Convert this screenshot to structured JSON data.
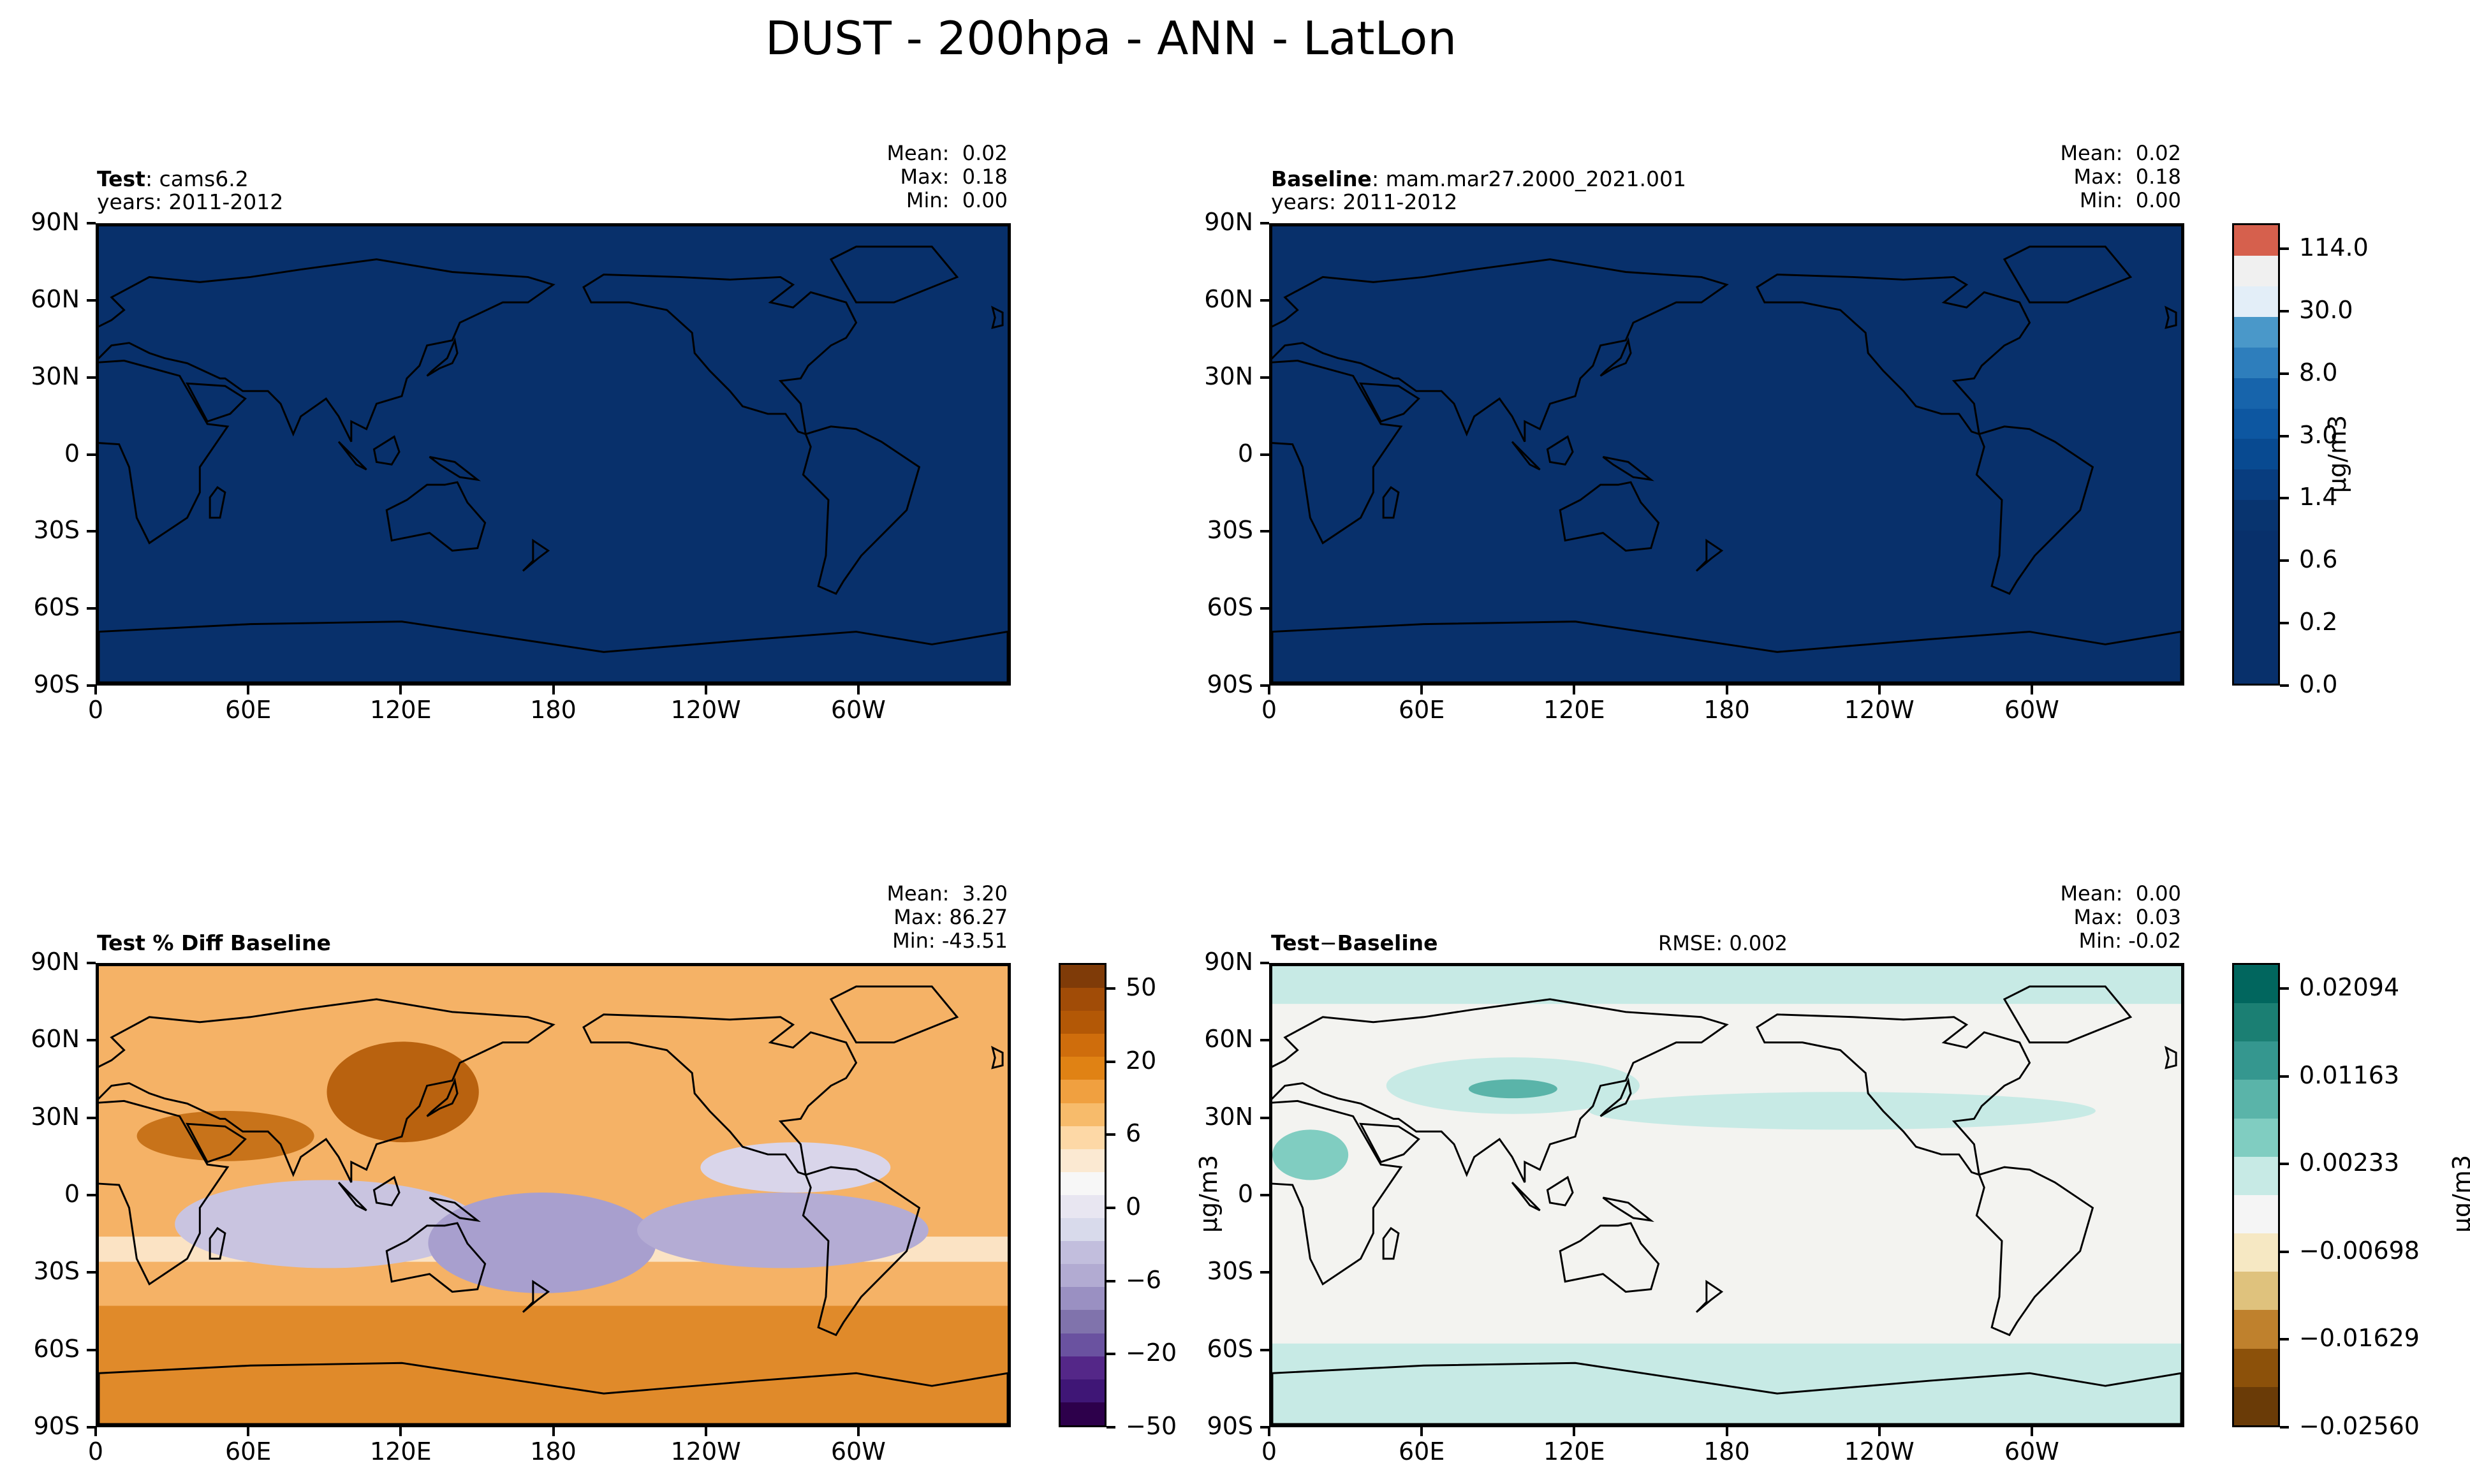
{
  "figure": {
    "title": "DUST - 200hpa - ANN - LatLon"
  },
  "axes": {
    "lat_ticks": [
      "90N",
      "60N",
      "30N",
      "0",
      "30S",
      "60S",
      "90S"
    ],
    "lon_ticks": [
      "0",
      "60E",
      "120E",
      "180",
      "120W",
      "60W"
    ]
  },
  "panels": {
    "test": {
      "label_bold": "Test",
      "label_sep": ":",
      "name": "cams6.2",
      "years": "years: 2011-2012",
      "mean": "Mean:  0.02",
      "max": "Max:  0.18",
      "min": "Min:  0.00",
      "fill": "#08306b"
    },
    "baseline": {
      "label_bold": "Baseline",
      "label_sep": ":",
      "name": "mam.mar27.2000_2021.001",
      "years": "years: 2011-2012",
      "mean": "Mean:  0.02",
      "max": "Max:  0.18",
      "min": "Min:  0.00",
      "fill": "#08306b"
    },
    "pct_diff": {
      "label_bold": "Test % Diff Baseline",
      "mean": "Mean:  3.20",
      "max": "Max: 86.27",
      "min": "Min: -43.51",
      "fill": "#f5b266"
    },
    "diff": {
      "label_bold": "Test",
      "label_mid": "−",
      "label_bold2": "Baseline",
      "rmse": "RMSE: 0.002",
      "mean": "Mean:  0.00",
      "max": "Max:  0.03",
      "min": "Min: -0.02",
      "fill": "#f3f3f0"
    }
  },
  "colorbars": {
    "main": {
      "unit": "μg/m3",
      "labels": [
        "114.0",
        "30.0",
        "8.0",
        "3.0",
        "1.4",
        "0.6",
        "0.2",
        "0.0"
      ],
      "colors": [
        "#d6604d",
        "#f0f0f0",
        "#e3eef8",
        "#4a98c9",
        "#2e7ebc",
        "#1764ab",
        "#0d57a1",
        "#084a91",
        "#083d7f",
        "#08346f",
        "#08306b",
        "#08306b",
        "#08306b",
        "#08306b",
        "#08306b"
      ]
    },
    "pct": {
      "unit": "μg/m3",
      "labels": [
        "50",
        "20",
        "6",
        "0",
        "−6",
        "−20",
        "−50"
      ],
      "colors": [
        "#7f3b08",
        "#a14c07",
        "#b35806",
        "#cf6d0c",
        "#e08214",
        "#f0a040",
        "#f7bb6b",
        "#fdd8a6",
        "#fbe9d2",
        "#f7f7f7",
        "#e8e6f1",
        "#d8daeb",
        "#c2bedd",
        "#b2abd2",
        "#9a90c2",
        "#8073ac",
        "#6a52a0",
        "#542788",
        "#3f1676",
        "#2d004b"
      ]
    },
    "diff": {
      "unit": "μg/m3",
      "labels": [
        "0.02094",
        "0.01163",
        "0.00233",
        "−0.00698",
        "−0.01629",
        "−0.02560"
      ],
      "colors": [
        "#01665e",
        "#1b7f73",
        "#35978f",
        "#5ab4a9",
        "#80cdc1",
        "#c7eae5",
        "#f5f5f5",
        "#f6e8c3",
        "#dfc27d",
        "#bf812d",
        "#8c510a",
        "#6a3b07"
      ]
    }
  }
}
